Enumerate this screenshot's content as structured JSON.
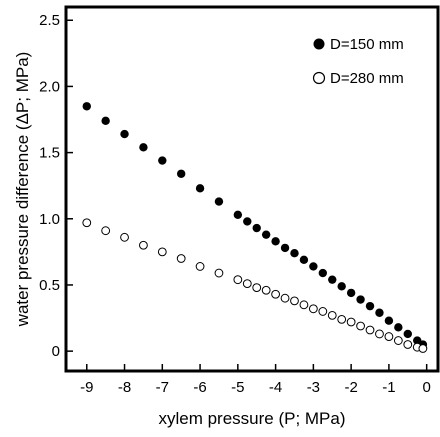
{
  "chart_data": {
    "type": "scatter",
    "xlabel": "xylem pressure (P; MPa)",
    "ylabel": "water pressure difference (ΔP; MPa)",
    "xlim": [
      -9.55,
      0.3
    ],
    "ylim": [
      -0.15,
      2.6
    ],
    "xticks": [
      -9,
      -8,
      -7,
      -6,
      -5,
      -4,
      -3,
      -2,
      -1,
      0
    ],
    "xtick_labels": [
      "-9",
      "-8",
      "-7",
      "-6",
      "-5",
      "-4",
      "-3",
      "-2",
      "-1",
      "0"
    ],
    "yticks": [
      0,
      0.5,
      1.0,
      1.5,
      2.0,
      2.5
    ],
    "ytick_labels": [
      "0",
      "0.5",
      "1.0",
      "1.5",
      "2.0",
      "2.5"
    ],
    "legend_position": "top-right",
    "grid": false,
    "series": [
      {
        "name": "D=150 mm",
        "marker": "filled-circle",
        "color": "#000000",
        "x": [
          -9.0,
          -8.5,
          -8.0,
          -7.5,
          -7.0,
          -6.5,
          -6.0,
          -5.5,
          -5.0,
          -4.75,
          -4.5,
          -4.25,
          -4.0,
          -3.75,
          -3.5,
          -3.25,
          -3.0,
          -2.75,
          -2.5,
          -2.25,
          -2.0,
          -1.75,
          -1.5,
          -1.25,
          -1.0,
          -0.75,
          -0.5,
          -0.25,
          -0.1
        ],
        "y": [
          1.85,
          1.74,
          1.64,
          1.54,
          1.44,
          1.34,
          1.23,
          1.13,
          1.03,
          0.98,
          0.93,
          0.88,
          0.83,
          0.78,
          0.74,
          0.69,
          0.64,
          0.59,
          0.54,
          0.49,
          0.44,
          0.39,
          0.34,
          0.29,
          0.23,
          0.18,
          0.13,
          0.08,
          0.05
        ]
      },
      {
        "name": "D=280 mm",
        "marker": "open-circle",
        "color": "#000000",
        "x": [
          -9.0,
          -8.5,
          -8.0,
          -7.5,
          -7.0,
          -6.5,
          -6.0,
          -5.5,
          -5.0,
          -4.75,
          -4.5,
          -4.25,
          -4.0,
          -3.75,
          -3.5,
          -3.25,
          -3.0,
          -2.75,
          -2.5,
          -2.25,
          -2.0,
          -1.75,
          -1.5,
          -1.25,
          -1.0,
          -0.75,
          -0.5,
          -0.25,
          -0.1
        ],
        "y": [
          0.97,
          0.91,
          0.86,
          0.8,
          0.75,
          0.7,
          0.64,
          0.59,
          0.54,
          0.51,
          0.48,
          0.46,
          0.43,
          0.4,
          0.38,
          0.35,
          0.32,
          0.3,
          0.27,
          0.24,
          0.22,
          0.19,
          0.16,
          0.13,
          0.11,
          0.08,
          0.05,
          0.03,
          0.02
        ]
      }
    ]
  }
}
